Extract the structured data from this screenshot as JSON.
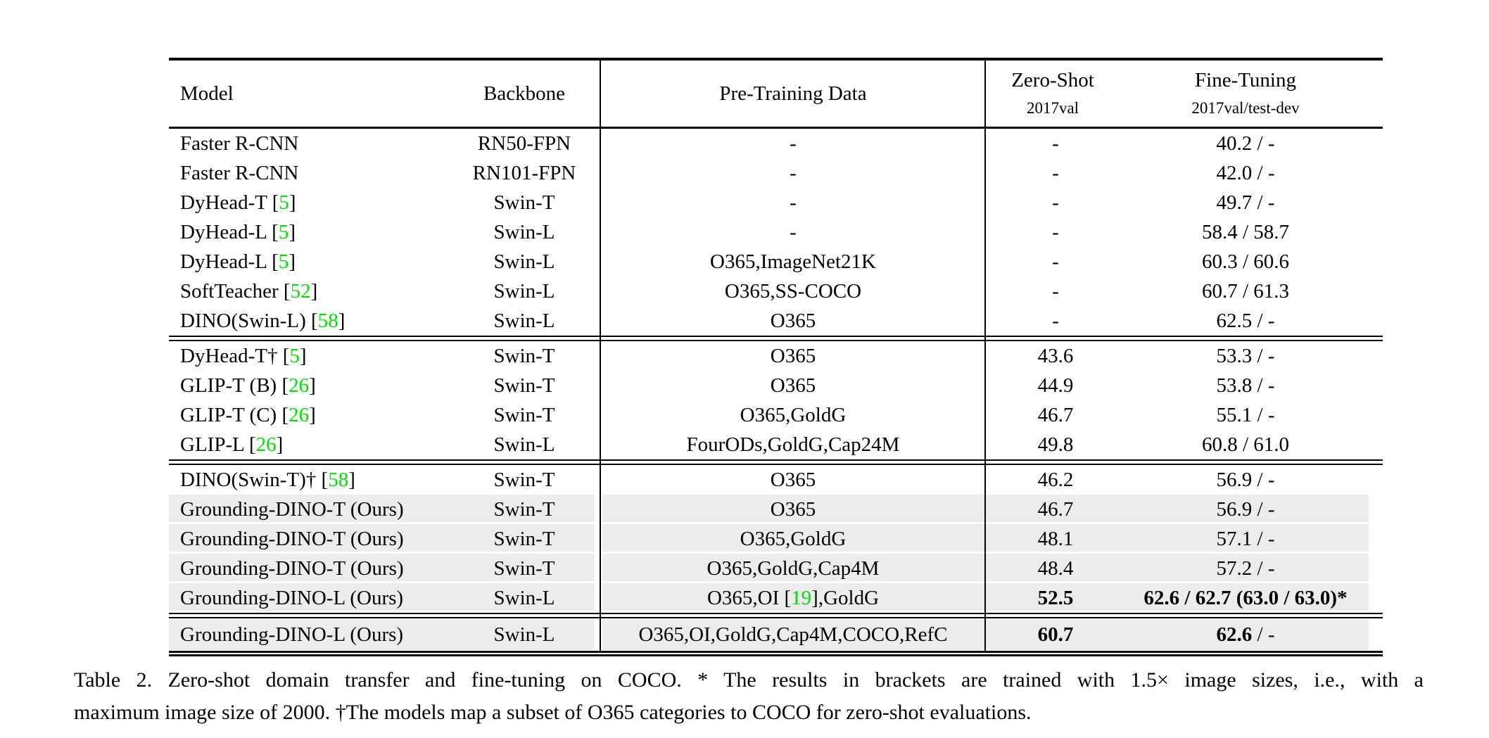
{
  "header": {
    "model": "Model",
    "backbone": "Backbone",
    "pretrain": "Pre-Training Data",
    "zeroshot": "Zero-Shot",
    "zeroshot_sub": "2017val",
    "finetune": "Fine-Tuning",
    "finetune_sub": "2017val/test-dev"
  },
  "colors": {
    "citation_green": "#00e000",
    "row_highlight": "#ececec"
  },
  "rows": [
    {
      "model": "Faster R-CNN",
      "backbone": "RN50-FPN",
      "pretrain": "-",
      "zeroshot": "-",
      "finetune": "40.2 / -"
    },
    {
      "model": "Faster R-CNN",
      "backbone": "RN101-FPN",
      "pretrain": "-",
      "zeroshot": "-",
      "finetune": "42.0 / -"
    },
    {
      "model_pre": "DyHead-T [",
      "model_cite": "5",
      "model_post": "]",
      "backbone": "Swin-T",
      "pretrain": "-",
      "zeroshot": "-",
      "finetune": "49.7 / -"
    },
    {
      "model_pre": "DyHead-L [",
      "model_cite": "5",
      "model_post": "]",
      "backbone": "Swin-L",
      "pretrain": "-",
      "zeroshot": "-",
      "finetune": "58.4 / 58.7"
    },
    {
      "model_pre": "DyHead-L [",
      "model_cite": "5",
      "model_post": "]",
      "backbone": "Swin-L",
      "pretrain": "O365,ImageNet21K",
      "zeroshot": "-",
      "finetune": "60.3 / 60.6"
    },
    {
      "model_pre": "SoftTeacher [",
      "model_cite": "52",
      "model_post": "]",
      "backbone": "Swin-L",
      "pretrain": "O365,SS-COCO",
      "zeroshot": "-",
      "finetune": "60.7 / 61.3"
    },
    {
      "model_pre": "DINO(Swin-L) [",
      "model_cite": "58",
      "model_post": "]",
      "backbone": "Swin-L",
      "pretrain": "O365",
      "zeroshot": "-",
      "finetune": "62.5 / -"
    },
    {
      "model_pre": "DyHead-T† [",
      "model_cite": "5",
      "model_post": "]",
      "backbone": "Swin-T",
      "pretrain": "O365",
      "zeroshot": "43.6",
      "finetune": "53.3 / -"
    },
    {
      "model_pre": "GLIP-T (B) [",
      "model_cite": "26",
      "model_post": "]",
      "backbone": "Swin-T",
      "pretrain": "O365",
      "zeroshot": "44.9",
      "finetune": "53.8 / -"
    },
    {
      "model_pre": "GLIP-T (C) [",
      "model_cite": "26",
      "model_post": "]",
      "backbone": "Swin-T",
      "pretrain": "O365,GoldG",
      "zeroshot": "46.7",
      "finetune": "55.1 / -"
    },
    {
      "model_pre": "GLIP-L [",
      "model_cite": "26",
      "model_post": "]",
      "backbone": "Swin-L",
      "pretrain": "FourODs,GoldG,Cap24M",
      "zeroshot": "49.8",
      "finetune": "60.8 / 61.0"
    },
    {
      "model_pre": "DINO(Swin-T)† [",
      "model_cite": "58",
      "model_post": "]",
      "backbone": "Swin-T",
      "pretrain": "O365",
      "zeroshot": "46.2",
      "finetune": "56.9 / -"
    },
    {
      "model": "Grounding-DINO-T (Ours)",
      "backbone": "Swin-T",
      "pretrain": "O365",
      "zeroshot": "46.7",
      "finetune": "56.9 / -"
    },
    {
      "model": "Grounding-DINO-T (Ours)",
      "backbone": "Swin-T",
      "pretrain": "O365,GoldG",
      "zeroshot": "48.1",
      "finetune": "57.1 / -"
    },
    {
      "model": "Grounding-DINO-T (Ours)",
      "backbone": "Swin-T",
      "pretrain": "O365,GoldG,Cap4M",
      "zeroshot": "48.4",
      "finetune": "57.2 / -"
    },
    {
      "model": "Grounding-DINO-L (Ours)",
      "backbone": "Swin-L",
      "pretrain_pre": "O365,OI [",
      "pretrain_cite": "19",
      "pretrain_post": "],GoldG",
      "zeroshot": "52.5",
      "finetune": "62.6 / 62.7 (63.0 / 63.0)*"
    },
    {
      "model": "Grounding-DINO-L (Ours)",
      "backbone": "Swin-L",
      "pretrain": "O365,OI,GoldG,Cap4M,COCO,RefC",
      "zeroshot": "60.7",
      "finetune": "62.6",
      "finetune_rest": " / -"
    }
  ],
  "caption": {
    "line1": "Table 2.  Zero-shot domain transfer and fine-tuning on COCO. * The results in brackets are trained with 1.5× image sizes, i.e., with a",
    "line2": "maximum image size of 2000. †The models map a subset of O365 categories to COCO for zero-shot evaluations."
  }
}
